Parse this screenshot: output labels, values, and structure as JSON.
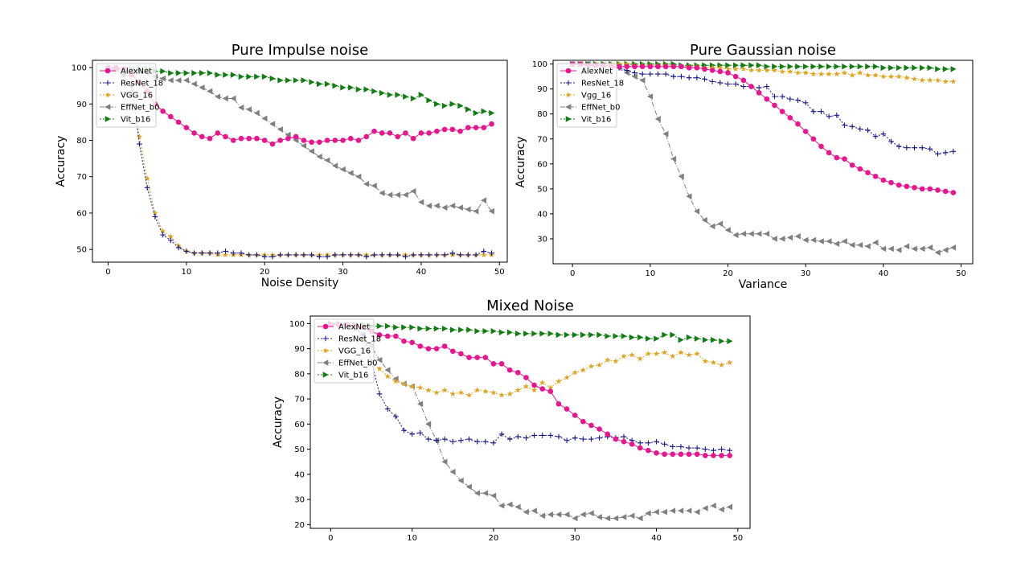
{
  "colors": {
    "alexnet": "#e8158f",
    "resnet": "#1a1a8c",
    "vgg": "#e0a41f",
    "effnet": "#7f7f7f",
    "vit": "#127d12"
  },
  "chart_data": [
    {
      "type": "line",
      "title": "Pure Impulse noise",
      "xlabel": "Noise Density",
      "ylabel": "Accuracy",
      "xlim": [
        -2,
        51
      ],
      "ylim": [
        46.5,
        102
      ],
      "xticks": [
        0,
        10,
        20,
        30,
        40,
        50
      ],
      "yticks": [
        50,
        60,
        70,
        80,
        90,
        100
      ],
      "legend": "top-left",
      "x": [
        0,
        1,
        2,
        3,
        4,
        5,
        6,
        7,
        8,
        9,
        10,
        11,
        12,
        13,
        14,
        15,
        16,
        17,
        18,
        19,
        20,
        21,
        22,
        23,
        24,
        25,
        26,
        27,
        28,
        29,
        30,
        31,
        32,
        33,
        34,
        35,
        36,
        37,
        38,
        39,
        40,
        41,
        42,
        43,
        44,
        45,
        46,
        47,
        48,
        49
      ],
      "series": [
        {
          "name": "AlexNet",
          "key": "alexnet",
          "marker": "circle",
          "values": [
            100,
            100,
            99.5,
            98,
            96,
            93.5,
            90,
            88,
            86.5,
            85,
            83.5,
            82,
            81,
            80.5,
            82,
            81,
            80,
            80.5,
            80.5,
            80.5,
            80,
            79,
            80,
            80.5,
            81,
            80,
            79.5,
            79.5,
            80,
            80,
            80,
            80.5,
            80,
            81,
            82.5,
            82,
            82,
            81,
            82,
            80.5,
            82,
            82,
            82.5,
            83,
            83,
            82.5,
            83.5,
            83.5,
            83.5,
            84.5
          ]
        },
        {
          "name": "ResNet_18",
          "key": "resnet",
          "marker": "plus",
          "values": [
            100,
            99.5,
            98,
            95,
            79,
            67,
            59,
            54,
            52.5,
            50.5,
            49.5,
            49,
            49,
            49,
            49,
            49.5,
            49,
            49,
            48.5,
            48.5,
            48,
            48,
            48.5,
            48.5,
            48.5,
            48.5,
            48.5,
            48,
            48,
            48.5,
            48.5,
            48.5,
            48.5,
            48,
            48.5,
            48.5,
            48.5,
            48.5,
            48,
            48.5,
            48.5,
            48.5,
            48.5,
            48.5,
            49,
            48.5,
            48.5,
            48.5,
            49.5,
            49
          ]
        },
        {
          "name": "VGG_16",
          "key": "vgg",
          "marker": "star",
          "values": [
            100,
            99.5,
            98,
            95,
            81,
            69.5,
            60,
            55,
            53.5,
            51,
            49.5,
            49,
            49,
            49,
            48.5,
            48.5,
            48.5,
            48.5,
            48.5,
            48.5,
            48.5,
            48.5,
            48.5,
            48.5,
            48.5,
            48.5,
            48.5,
            48.5,
            48.5,
            48.5,
            48.5,
            48.5,
            48.5,
            48.5,
            48.5,
            48.5,
            48.5,
            48.5,
            48.5,
            48.5,
            48.5,
            48.5,
            48.5,
            48.5,
            48.5,
            48.5,
            48.5,
            48.5,
            48.5,
            48.5
          ]
        },
        {
          "name": "EffNet_b0",
          "key": "effnet",
          "marker": "tri-left",
          "values": [
            99.5,
            99.5,
            99.5,
            99.5,
            99,
            98.5,
            97.5,
            97,
            96.5,
            96.5,
            96.5,
            95.5,
            94.5,
            93.5,
            92,
            91.5,
            91.5,
            89,
            88.5,
            87.5,
            86,
            84.5,
            83,
            81.5,
            80,
            78.5,
            77,
            75.5,
            74.5,
            73,
            72,
            71,
            70,
            68,
            67.5,
            65.5,
            65,
            65,
            65,
            66,
            63,
            62,
            62,
            61.5,
            62,
            61.5,
            61,
            60.5,
            63.5,
            60.5
          ]
        },
        {
          "name": "Vit_b16",
          "key": "vit",
          "marker": "tri-right",
          "values": [
            99.5,
            99.5,
            99.5,
            99.5,
            99.5,
            99.5,
            99,
            99,
            98.5,
            98.5,
            98.5,
            98.5,
            98.5,
            98.5,
            98,
            98,
            98,
            97.5,
            97.5,
            97.5,
            97.5,
            97,
            96.5,
            96.5,
            96.5,
            96.5,
            96,
            95.5,
            95.5,
            95,
            94.5,
            94.5,
            94,
            94,
            93.5,
            93,
            92.5,
            92.5,
            92,
            91.5,
            92.5,
            91,
            90,
            89.5,
            90,
            89.5,
            88.5,
            87.5,
            88,
            87.5
          ]
        }
      ]
    },
    {
      "type": "line",
      "title": "Pure Gaussian noise",
      "xlabel": "Variance",
      "ylabel": "Accuracy",
      "xlim": [
        -2.5,
        51.5
      ],
      "ylim": [
        20,
        101.5
      ],
      "xticks": [
        0,
        10,
        20,
        30,
        40,
        50
      ],
      "yticks": [
        30,
        40,
        50,
        60,
        70,
        80,
        90,
        100
      ],
      "legend": "top-left",
      "x": [
        0,
        1,
        2,
        3,
        4,
        5,
        6,
        7,
        8,
        9,
        10,
        11,
        12,
        13,
        14,
        15,
        16,
        17,
        18,
        19,
        20,
        21,
        22,
        23,
        24,
        25,
        26,
        27,
        28,
        29,
        30,
        31,
        32,
        33,
        34,
        35,
        36,
        37,
        38,
        39,
        40,
        41,
        42,
        43,
        44,
        45,
        46,
        47,
        48,
        49
      ],
      "series": [
        {
          "name": "AlexNet",
          "key": "alexnet",
          "marker": "circle",
          "values": [
            100,
            100,
            99.5,
            99.5,
            99.5,
            99,
            99,
            99,
            99,
            99,
            99,
            99,
            99,
            99,
            99,
            98.5,
            98.5,
            98,
            97.5,
            97,
            96.5,
            95,
            93.5,
            91,
            88.5,
            86,
            83.5,
            81,
            78.5,
            76,
            73,
            70,
            67,
            64.5,
            62.5,
            62,
            59.5,
            58,
            56.5,
            55,
            53.5,
            52.5,
            51.5,
            51,
            50.5,
            50,
            50,
            49.5,
            49,
            48.5
          ]
        },
        {
          "name": "ResNet_18",
          "key": "resnet",
          "marker": "plus",
          "values": [
            100,
            100,
            100,
            99.5,
            99.5,
            99,
            98.5,
            97.5,
            96.5,
            96,
            96,
            96,
            96,
            95,
            95,
            94.5,
            94.5,
            94,
            93,
            92.5,
            92,
            92,
            91,
            91,
            90.5,
            91,
            87,
            87,
            86,
            85.5,
            84.5,
            81,
            81,
            79,
            79.5,
            75.5,
            75,
            74,
            73.5,
            71,
            72,
            69,
            67,
            66.5,
            66.5,
            66.5,
            66,
            64,
            64.5,
            65
          ]
        },
        {
          "name": "Vgg_16",
          "key": "vgg",
          "marker": "star",
          "values": [
            100,
            100,
            100,
            100,
            100,
            100,
            100,
            100,
            99.5,
            99.5,
            99.5,
            99.5,
            99.5,
            99,
            99,
            99,
            99,
            98.5,
            98.5,
            98.5,
            98,
            98,
            98,
            97.5,
            97.5,
            97.5,
            97.5,
            97,
            97,
            96.5,
            96.5,
            96,
            96,
            96,
            96,
            96.5,
            95.5,
            96.5,
            95.5,
            95.5,
            95,
            95,
            95,
            94.5,
            94,
            93.5,
            93.5,
            93.5,
            93,
            93
          ]
        },
        {
          "name": "EffNet_b0",
          "key": "effnet",
          "marker": "tri-left",
          "values": [
            100,
            100,
            100,
            99.5,
            99.5,
            99,
            98.5,
            96.5,
            95,
            93.5,
            87,
            78,
            72,
            62,
            55,
            47,
            41,
            37.5,
            35,
            36,
            33.5,
            31.5,
            32,
            32,
            32,
            32,
            30,
            30,
            30.5,
            31,
            29.5,
            29.5,
            29,
            29,
            28,
            29,
            27.5,
            27.5,
            27,
            28.5,
            26,
            26,
            25.5,
            27,
            26,
            26,
            26.5,
            24.5,
            25.5,
            26.5
          ]
        },
        {
          "name": "Vit_b16",
          "key": "vit",
          "marker": "tri-right",
          "values": [
            100,
            100,
            100,
            100,
            100,
            100,
            100,
            100,
            100,
            100,
            100,
            100,
            100,
            100,
            99.5,
            99.5,
            99.5,
            99.5,
            99.5,
            99.5,
            99.5,
            99.5,
            99.5,
            99.5,
            99.5,
            99,
            99,
            99,
            99,
            99,
            99,
            99,
            99,
            99,
            99,
            99,
            99,
            99,
            99,
            99,
            98.5,
            98.5,
            98.5,
            98.5,
            98.5,
            98.5,
            98.5,
            98,
            98,
            98
          ]
        }
      ]
    },
    {
      "type": "line",
      "title": "Mixed Noise",
      "xlabel": "",
      "ylabel": "Accuracy",
      "xlim": [
        -2.5,
        51.5
      ],
      "ylim": [
        18.5,
        103
      ],
      "xticks": [
        0,
        10,
        20,
        30,
        40,
        50
      ],
      "yticks": [
        20,
        30,
        40,
        50,
        60,
        70,
        80,
        90,
        100
      ],
      "legend": "top-left",
      "x": [
        0,
        1,
        2,
        3,
        4,
        5,
        6,
        7,
        8,
        9,
        10,
        11,
        12,
        13,
        14,
        15,
        16,
        17,
        18,
        19,
        20,
        21,
        22,
        23,
        24,
        25,
        26,
        27,
        28,
        29,
        30,
        31,
        32,
        33,
        34,
        35,
        36,
        37,
        38,
        39,
        40,
        41,
        42,
        43,
        44,
        45,
        46,
        47,
        48,
        49
      ],
      "series": [
        {
          "name": "AlexNet",
          "key": "alexnet",
          "marker": "circle",
          "values": [
            99.5,
            99.5,
            99.5,
            99,
            98.5,
            97,
            95.5,
            95,
            95,
            93,
            92.5,
            91,
            90,
            90,
            91,
            89,
            88,
            86.5,
            86.5,
            86.5,
            84,
            84,
            81.5,
            80.5,
            78.5,
            75.5,
            74,
            73,
            68,
            66,
            63.5,
            61,
            59.5,
            58,
            56,
            54,
            53,
            52,
            50.5,
            49.5,
            48.5,
            48,
            48,
            48,
            48,
            48,
            47.5,
            47.5,
            47.5,
            47.5
          ]
        },
        {
          "name": "ResNet_18",
          "key": "resnet",
          "marker": "plus",
          "values": [
            99.5,
            99.5,
            99.5,
            98,
            95.5,
            85,
            72,
            66,
            63,
            57.5,
            56,
            56.5,
            54,
            53.5,
            54,
            53,
            53.5,
            54,
            53,
            53,
            52.5,
            56,
            54,
            55,
            54.5,
            55.5,
            55.5,
            55.5,
            55,
            53.5,
            54.5,
            54,
            54,
            54.5,
            55,
            54.5,
            55,
            53.5,
            52.5,
            52.5,
            53,
            52,
            51,
            51,
            50.5,
            50.5,
            50,
            49.5,
            50,
            49.5
          ]
        },
        {
          "name": "VGG_16",
          "key": "vgg",
          "marker": "star",
          "values": [
            99.5,
            99.5,
            99.5,
            98.5,
            93,
            85,
            82,
            79,
            77,
            76,
            75,
            74.5,
            73.5,
            72.5,
            73.5,
            72,
            72.5,
            71.5,
            73.5,
            73,
            72.5,
            71.5,
            72,
            73.5,
            75,
            73.5,
            76.5,
            74.5,
            77,
            78.5,
            80.5,
            81.5,
            83,
            83.5,
            85.5,
            85,
            87,
            87.5,
            86,
            88,
            88,
            88.5,
            87,
            88.5,
            87.5,
            88,
            85,
            84.5,
            83.5,
            84.5
          ]
        },
        {
          "name": "EffNet_b0",
          "key": "effnet",
          "marker": "tri-left",
          "values": [
            99.5,
            99.5,
            99.5,
            98.5,
            95.5,
            91,
            85.5,
            81.5,
            78,
            76,
            75,
            68,
            60,
            53.5,
            45,
            41,
            37.5,
            35,
            32.5,
            32.5,
            31.5,
            27.5,
            28,
            27,
            25,
            25.5,
            23.5,
            24,
            24,
            24,
            22.5,
            24,
            24.5,
            23,
            22.5,
            22.5,
            23,
            23.5,
            22.5,
            24.5,
            25,
            25,
            25.5,
            25.5,
            25.5,
            25,
            26.5,
            27.5,
            26,
            27
          ]
        },
        {
          "name": "Vit_b16",
          "key": "vit",
          "marker": "tri-right",
          "values": [
            100,
            100,
            99.5,
            99.5,
            99.5,
            99,
            99,
            99,
            98.5,
            98.5,
            98.5,
            98,
            98,
            98,
            98,
            97.5,
            97.5,
            97.5,
            97,
            97,
            97,
            96.5,
            96.5,
            96,
            96,
            96,
            96,
            96,
            95.5,
            95.5,
            95.5,
            95.5,
            95.5,
            95.5,
            95,
            95,
            95,
            94.5,
            94.5,
            94,
            94,
            95.5,
            95.5,
            93.5,
            94.5,
            94,
            93.5,
            93.5,
            93,
            93
          ]
        }
      ]
    }
  ]
}
